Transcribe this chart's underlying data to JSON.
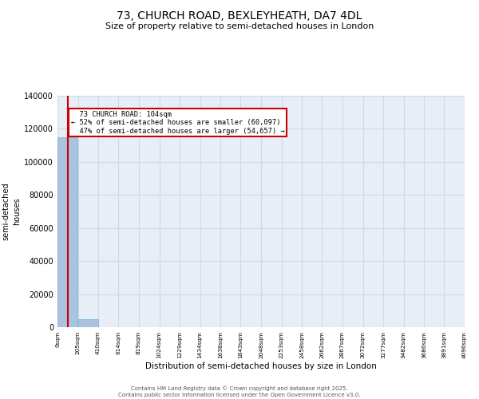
{
  "title_line1": "73, CHURCH ROAD, BEXLEYHEATH, DA7 4DL",
  "title_line2": "Size of property relative to semi-detached houses in London",
  "xlabel": "Distribution of semi-detached houses by size in London",
  "ylabel": "Number of\nsemi-detached\nhouses",
  "property_size": 104,
  "property_label": "73 CHURCH ROAD: 104sqm",
  "pct_smaller": 52,
  "pct_larger": 47,
  "n_smaller": 60097,
  "n_larger": 54657,
  "bin_edges": [
    0,
    205,
    410,
    614,
    819,
    1024,
    1229,
    1434,
    1638,
    1843,
    2048,
    2253,
    2458,
    2662,
    2867,
    3072,
    3277,
    3482,
    3686,
    3891,
    4096
  ],
  "bin_counts": [
    115000,
    5000,
    0,
    0,
    0,
    0,
    0,
    0,
    0,
    0,
    0,
    0,
    0,
    0,
    0,
    0,
    0,
    0,
    0,
    0
  ],
  "bar_color": "#aac4e0",
  "bar_edge_color": "#7aafd4",
  "property_line_color": "#cc0000",
  "annotation_box_color": "#cc0000",
  "grid_color": "#d0d8e8",
  "background_color": "#e8eef8",
  "ylim": [
    0,
    140000
  ],
  "yticks": [
    0,
    20000,
    40000,
    60000,
    80000,
    100000,
    120000,
    140000
  ],
  "tick_labels_x": [
    "0sqm",
    "205sqm",
    "410sqm",
    "614sqm",
    "819sqm",
    "1024sqm",
    "1229sqm",
    "1434sqm",
    "1638sqm",
    "1843sqm",
    "2048sqm",
    "2253sqm",
    "2458sqm",
    "2662sqm",
    "2867sqm",
    "3072sqm",
    "3277sqm",
    "3482sqm",
    "3686sqm",
    "3891sqm",
    "4096sqm"
  ],
  "footer_line1": "Contains HM Land Registry data © Crown copyright and database right 2025.",
  "footer_line2": "Contains public sector information licensed under the Open Government Licence v3.0."
}
